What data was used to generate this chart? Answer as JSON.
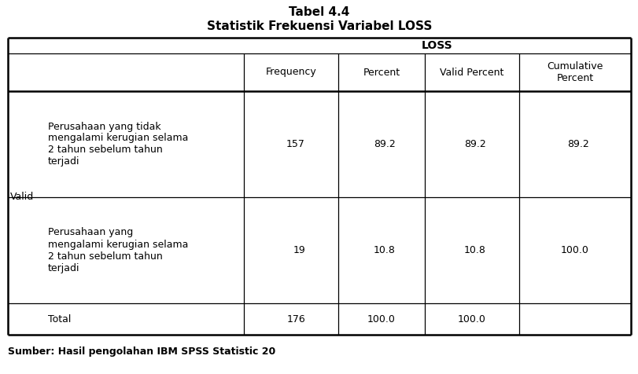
{
  "title_line1": "Tabel 4.4",
  "title_line2": "Statistik Frekuensi Variabel LOSS",
  "table_header": "LOSS",
  "col_headers": [
    "Frequency",
    "Percent",
    "Valid Percent",
    "Cumulative\nPercent"
  ],
  "valid_label": "Valid",
  "row1_desc": "Perusahaan yang tidak\nmengalami kerugian selama\n2 tahun sebelum tahun\nterjadi",
  "row2_desc": "Perusahaan yang\nmengalami kerugian selama\n2 tahun sebelum tahun\nterjadi",
  "row1_vals": [
    "157",
    "89.2",
    "89.2",
    "89.2"
  ],
  "row2_vals": [
    "19",
    "10.8",
    "10.8",
    "100.0"
  ],
  "total_vals": [
    "176",
    "100.0",
    "100.0",
    ""
  ],
  "footer": "Sumber: Hasil pengolahan IBM SPSS Statistic 20",
  "bg_color": "#ffffff",
  "text_color": "#000000",
  "title_fontsize": 11,
  "header_fontsize": 9,
  "cell_fontsize": 9,
  "footer_fontsize": 9
}
